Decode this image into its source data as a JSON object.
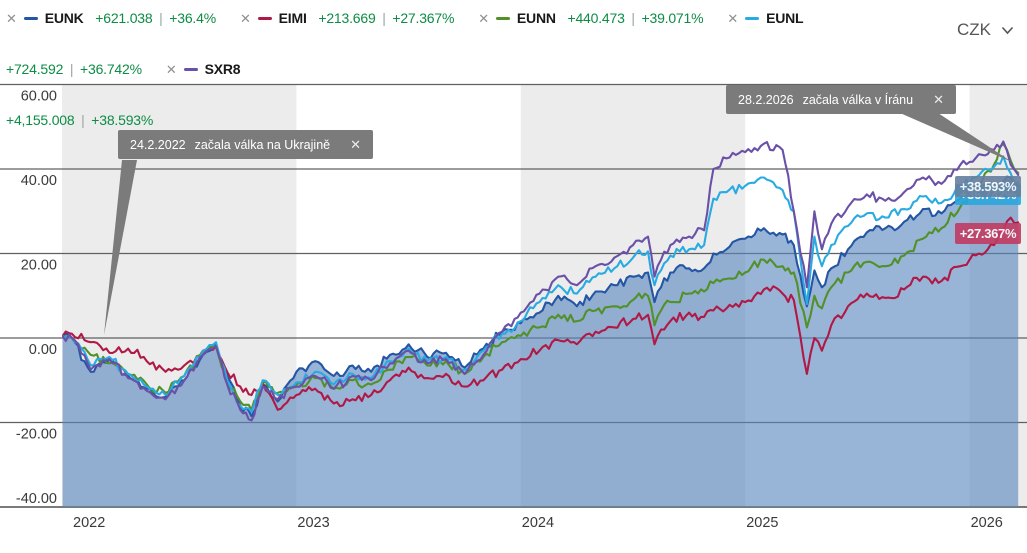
{
  "toolbar": {
    "currency": "CZK"
  },
  "glyphs": {
    "close": "✕",
    "legend_remove": "✕"
  },
  "legend": {
    "value_color": "#0d8c45",
    "separator": "|",
    "items": [
      {
        "ticker": "EUNK",
        "color": "#2456a4",
        "change_abs": "+621.038",
        "change_pct": "+36.4%"
      },
      {
        "ticker": "EIMI",
        "color": "#b01946",
        "change_abs": "+213.669",
        "change_pct": "+27.367%"
      },
      {
        "ticker": "EUNN",
        "color": "#529028",
        "change_abs": "+440.473",
        "change_pct": "+39.071%"
      },
      {
        "ticker": "EUNL",
        "color": "#29abe2",
        "change_abs": "+724.592",
        "change_pct": "+36.742%"
      },
      {
        "ticker": "SXR8",
        "color": "#6a50a7",
        "change_abs": "+4,155.008",
        "change_pct": "+38.593%"
      }
    ]
  },
  "annotations": [
    {
      "date": "24.2.2022",
      "text": "začala válka na Ukrajině"
    },
    {
      "date": "28.2.2026",
      "text": "začala válka v Íránu"
    }
  ],
  "chart_data": {
    "type": "line",
    "title": "",
    "xlabel": "",
    "ylabel": "",
    "ylim": [
      -40,
      60
    ],
    "grid": "horizontal",
    "plot_band_color": "#ececec",
    "x_note": "months since 1.1.2022 (fractional = intra-month), values = cumulative return %",
    "x_ticks": [
      {
        "label": "2022"
      },
      {
        "label": "2023"
      },
      {
        "label": "2024"
      },
      {
        "label": "2025"
      },
      {
        "label": "2026"
      }
    ],
    "y_ticks": [
      {
        "value": 60,
        "label": "60.00"
      },
      {
        "value": 40,
        "label": "40.00"
      },
      {
        "value": 20,
        "label": "20.00"
      },
      {
        "value": 0,
        "label": "0.00"
      },
      {
        "value": -20,
        "label": "-20.00"
      },
      {
        "value": -40,
        "label": "-40.00"
      }
    ],
    "x": [
      -0.5,
      0,
      1,
      2,
      3,
      4,
      5,
      6,
      7,
      7.7,
      8.3,
      9,
      9.6,
      10.2,
      11,
      12,
      13,
      14,
      15,
      16,
      17,
      18,
      19,
      20,
      21,
      22,
      23,
      24,
      25,
      26,
      27,
      28,
      29,
      30,
      30.8,
      31.15,
      31.5,
      32,
      33,
      33.8,
      34.3,
      35,
      36,
      37,
      38,
      38.6,
      39.3,
      39.7,
      40.1,
      40.6,
      41.5,
      42.5,
      43.5,
      44.5,
      45.5,
      46.5,
      47.5,
      48.5,
      49.3,
      49.8,
      50.2,
      50.6
    ],
    "series": [
      {
        "name": "EUNK",
        "color": "#2456a4",
        "fill": true,
        "fill_color": "rgba(88,134,190,0.62)",
        "values": [
          0.5,
          0,
          -8,
          -5,
          -9,
          -12,
          -14,
          -10,
          -4,
          -1.5,
          -9,
          -16,
          -18.5,
          -11,
          -15,
          -8,
          -5.5,
          -9,
          -6.5,
          -8,
          -4,
          -1.5,
          -4.5,
          -3.5,
          -7,
          -2.5,
          1.5,
          3.5,
          6,
          10,
          7.5,
          11,
          12.5,
          14.5,
          15.5,
          8.5,
          12,
          15.5,
          16.5,
          16.5,
          20,
          21,
          23.5,
          26,
          24.5,
          22,
          7.5,
          16,
          12,
          16.5,
          21,
          25,
          26,
          27.5,
          30.5,
          29.5,
          33,
          35.5,
          34.5,
          37,
          38,
          36.4
        ]
      },
      {
        "name": "EIMI",
        "color": "#b01946",
        "fill": false,
        "values": [
          0.5,
          1,
          -1,
          -3.5,
          -2.5,
          -5.5,
          -8,
          -6.5,
          -3,
          -2,
          -8,
          -11.5,
          -13.5,
          -10.5,
          -17,
          -13.5,
          -12,
          -15.5,
          -14.5,
          -13.5,
          -10,
          -7,
          -9.5,
          -8.5,
          -11.5,
          -10,
          -7.5,
          -5,
          -3,
          -0.5,
          -1.5,
          1.5,
          2.5,
          4.5,
          5.5,
          -1.5,
          2,
          4,
          6,
          5,
          6.5,
          7,
          8.5,
          11.5,
          10.5,
          9,
          -8.5,
          0,
          -3,
          3,
          7.5,
          10.5,
          9.5,
          11.5,
          14.5,
          13.5,
          17,
          20,
          22,
          25.5,
          28.5,
          27.37
        ]
      },
      {
        "name": "EUNN",
        "color": "#529028",
        "fill": false,
        "values": [
          0.5,
          0,
          -4,
          -6,
          -8.5,
          -11,
          -13,
          -9,
          -3.5,
          -2,
          -10,
          -15,
          -17,
          -10.5,
          -13,
          -11,
          -9.5,
          -12,
          -10,
          -11,
          -7.5,
          -4.5,
          -6.5,
          -5.5,
          -8.5,
          -4.5,
          -1,
          0.5,
          2.5,
          5.5,
          4,
          6.5,
          7.5,
          9,
          10,
          3,
          6.5,
          8.5,
          10.5,
          11,
          13,
          14,
          15.5,
          18.5,
          17,
          15.5,
          2.5,
          10,
          7,
          12,
          15.5,
          18,
          17,
          19.5,
          23.5,
          26,
          31,
          36,
          41,
          46,
          42,
          39.07
        ]
      },
      {
        "name": "EUNL",
        "color": "#29abe2",
        "fill": false,
        "values": [
          0.5,
          0,
          -6.5,
          -4.5,
          -8.5,
          -11.5,
          -13.5,
          -9,
          -3,
          -1,
          -10,
          -16,
          -17.5,
          -10,
          -13.5,
          -10.5,
          -8,
          -11,
          -8.5,
          -9.5,
          -5.5,
          -2.5,
          -5.5,
          -4.5,
          -7.5,
          -3,
          1,
          4,
          8.5,
          12.5,
          10.5,
          14.5,
          16.5,
          19,
          20.5,
          12.5,
          16,
          19.5,
          21,
          22,
          33,
          34.5,
          36,
          38,
          35,
          30,
          8,
          24,
          17,
          22,
          26.5,
          29.5,
          28.5,
          30.5,
          33.5,
          32,
          36,
          38.5,
          40.5,
          43,
          39,
          36.74
        ]
      },
      {
        "name": "SXR8",
        "color": "#6a50a7",
        "fill": false,
        "values": [
          0.5,
          0,
          -7.5,
          -5,
          -9.5,
          -12.5,
          -14.5,
          -10,
          -4,
          -2,
          -11,
          -17,
          -19.5,
          -11.5,
          -14.5,
          -11.5,
          -9,
          -12,
          -9,
          -10,
          -6,
          -3,
          -6,
          -5,
          -8.5,
          -4,
          1.5,
          6,
          10.5,
          14.5,
          12.5,
          17,
          19,
          22,
          24,
          14.5,
          18.5,
          22,
          24,
          25.5,
          40,
          42.5,
          44,
          46,
          44.5,
          30,
          12,
          30,
          21,
          27,
          31,
          34,
          32.5,
          34.5,
          38,
          36.5,
          41,
          43.5,
          44.5,
          46.5,
          41,
          38.59
        ]
      }
    ],
    "end_labels": [
      {
        "series": "EUNL",
        "label": "+36.742%",
        "value": 36.742,
        "color": "#2aa7de"
      },
      {
        "series": "SXR8",
        "label": "+38.593%",
        "value": 38.593,
        "color": "#66809f"
      },
      {
        "series": "EIMI",
        "label": "+27.367%",
        "value": 27.367,
        "color": "#c13b62"
      }
    ]
  }
}
